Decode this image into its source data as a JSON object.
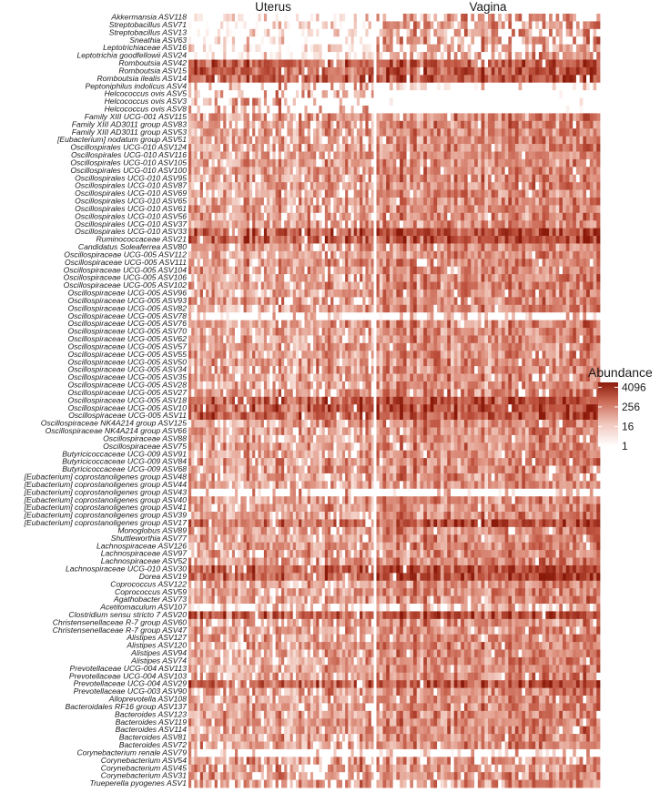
{
  "chart_data": {
    "type": "heatmap",
    "facets": [
      "Uterus",
      "Vagina"
    ],
    "legend": {
      "title": "Abundance",
      "ticks": [
        "4096",
        "256",
        "16",
        "1"
      ],
      "tick_values": [
        4096,
        256,
        16,
        1
      ],
      "scale": "log",
      "range": [
        1,
        8192
      ],
      "color_low": "#ffffff",
      "color_high": "#8b1a0a"
    },
    "rows": [
      "Akkermansia ASV118",
      "Streptobacillus ASV71",
      "Streptobacillus ASV13",
      "Sneathia ASV63",
      "Leptotrichiaceae ASV16",
      "Leptotrichia goodfellowii ASV24",
      "Romboutsia ASV42",
      "Romboutsia ASV15",
      "Romboutsia ilealis ASV14",
      "Peptoniphilus indolicus ASV4",
      "Helcococcus ovis ASV5",
      "Helcococcus ovis ASV3",
      "Helcococcus ovis ASV8",
      "Family XIII UCG-001 ASV115",
      "Family XIII AD3011 group ASV83",
      "Family XIII AD3011 group ASV53",
      "[Eubacterium] nodatum group ASV51",
      "Oscillospirales UCG-010 ASV124",
      "Oscillospirales UCG-010 ASV116",
      "Oscillospirales UCG-010 ASV105",
      "Oscillospirales UCG-010 ASV100",
      "Oscillospirales UCG-010 ASV95",
      "Oscillospirales UCG-010 ASV87",
      "Oscillospirales UCG-010 ASV69",
      "Oscillospirales UCG-010 ASV65",
      "Oscillospirales UCG-010 ASV61",
      "Oscillospirales UCG-010 ASV56",
      "Oscillospirales UCG-010 ASV37",
      "Oscillospirales UCG-010 ASV33",
      "Ruminococcaceae ASV21",
      "Candidatus Soleaferrea ASV80",
      "Oscillospiraceae UCG-005 ASV112",
      "Oscillospiraceae UCG-005 ASV111",
      "Oscillospiraceae UCG-005 ASV104",
      "Oscillospiraceae UCG-005 ASV106",
      "Oscillospiraceae UCG-005 ASV102",
      "Oscillospiraceae UCG-005 ASV96",
      "Oscillospiraceae UCG-005 ASV93",
      "Oscillospiraceae UCG-005 ASV82",
      "Oscillospiraceae UCG-005 ASV78",
      "Oscillospiraceae UCG-005 ASV76",
      "Oscillospiraceae UCG-005 ASV70",
      "Oscillospiraceae UCG-005 ASV62",
      "Oscillospiraceae UCG-005 ASV57",
      "Oscillospiraceae UCG-005 ASV55",
      "Oscillospiraceae UCG-005 ASV50",
      "Oscillospiraceae UCG-005 ASV34",
      "Oscillospiraceae UCG-005 ASV35",
      "Oscillospiraceae UCG-005 ASV28",
      "Oscillospiraceae UCG-005 ASV27",
      "Oscillospiraceae UCG-005 ASV18",
      "Oscillospiraceae UCG-005 ASV10",
      "Oscillospiraceae UCG-005 ASV11",
      "Oscillospiraceae NK4A214 group ASV125",
      "Oscillospiraceae NK4A214 group ASV66",
      "Oscillospiraceae ASV88",
      "Oscillospiraceae ASV75",
      "Butyricicoccaceae UCG-009 ASV91",
      "Butyricicoccaceae UCG-009 ASV84",
      "Butyricicoccaceae UCG-009 ASV68",
      "[Eubacterium] coprostanoligenes group ASV48",
      "[Eubacterium] coprostanoligenes group ASV44",
      "[Eubacterium] coprostanoligenes group ASV43",
      "[Eubacterium] coprostanoligenes group ASV40",
      "[Eubacterium] coprostanoligenes group ASV41",
      "[Eubacterium] coprostanoligenes group ASV39",
      "[Eubacterium] coprostanoligenes group ASV17",
      "Monoglobus ASV89",
      "Shuttleworthia ASV77",
      "Lachnospiraceae ASV126",
      "Lachnospiraceae ASV97",
      "Lachnospiraceae ASV52",
      "Lachnospiraceae UCG-010 ASV30",
      "Dorea ASV19",
      "Coprococcus ASV122",
      "Coprococcus ASV59",
      "Agathobacter ASV73",
      "Acetitomaculum ASV107",
      "Clostridium sensu stricto 7 ASV20",
      "Christensenellaceae R-7 group ASV60",
      "Christensenellaceae R-7 group ASV47",
      "Alistipes ASV127",
      "Alistipes ASV120",
      "Alistipes ASV94",
      "Alistipes ASV74",
      "Prevotellaceae UCG-004 ASV113",
      "Prevotellaceae UCG-004 ASV103",
      "Prevotellaceae UCG-004 ASV29",
      "Prevotellaceae UCG-003 ASV90",
      "Alloprevotella ASV108",
      "Bacteroidales RF16 group ASV137",
      "Bacteroides ASV123",
      "Bacteroides ASV119",
      "Bacteroides ASV114",
      "Bacteroides ASV81",
      "Bacteroides ASV72",
      "Corynebacterium renale ASV79",
      "Corynebacterium ASV54",
      "Corynebacterium ASV45",
      "Corynebacterium ASV31",
      "Trueperella pyogenes ASV1"
    ]
  }
}
